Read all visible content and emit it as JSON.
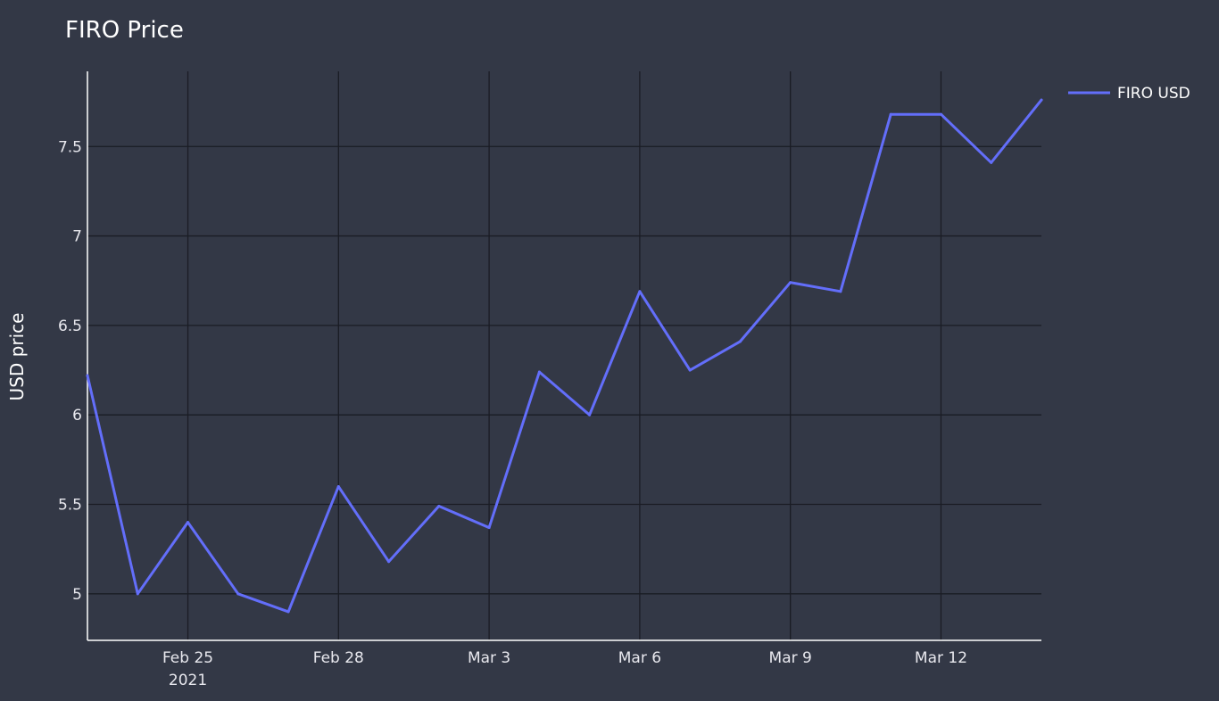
{
  "chart_data": {
    "type": "line",
    "title": "FIRO Price",
    "xlabel": "",
    "ylabel": "USD price",
    "x": [
      "2021-02-23",
      "2021-02-24",
      "2021-02-25",
      "2021-02-26",
      "2021-02-27",
      "2021-02-28",
      "2021-03-01",
      "2021-03-02",
      "2021-03-03",
      "2021-03-04",
      "2021-03-05",
      "2021-03-06",
      "2021-03-07",
      "2021-03-08",
      "2021-03-09",
      "2021-03-10",
      "2021-03-11",
      "2021-03-12",
      "2021-03-13",
      "2021-03-14"
    ],
    "series": [
      {
        "name": "FIRO USD",
        "color": "#636efa",
        "values": [
          6.22,
          5.0,
          5.4,
          5.0,
          4.9,
          5.6,
          5.18,
          5.49,
          5.37,
          6.24,
          6.0,
          6.69,
          6.25,
          6.41,
          6.74,
          6.69,
          7.68,
          7.68,
          7.41,
          7.76
        ]
      }
    ],
    "xlim": [
      "2021-02-23",
      "2021-03-14"
    ],
    "ylim": [
      4.74,
      7.92
    ],
    "x_ticks": [
      {
        "date": "2021-02-25",
        "label": "Feb 25",
        "sublabel": "2021"
      },
      {
        "date": "2021-02-28",
        "label": "Feb 28",
        "sublabel": ""
      },
      {
        "date": "2021-03-03",
        "label": "Mar 3",
        "sublabel": ""
      },
      {
        "date": "2021-03-06",
        "label": "Mar 6",
        "sublabel": ""
      },
      {
        "date": "2021-03-09",
        "label": "Mar 9",
        "sublabel": ""
      },
      {
        "date": "2021-03-12",
        "label": "Mar 12",
        "sublabel": ""
      }
    ],
    "y_ticks": [
      {
        "value": 5,
        "label": "5"
      },
      {
        "value": 5.5,
        "label": "5.5"
      },
      {
        "value": 6,
        "label": "6"
      },
      {
        "value": 6.5,
        "label": "6.5"
      },
      {
        "value": 7,
        "label": "7"
      },
      {
        "value": 7.5,
        "label": "7.5"
      }
    ],
    "grid": true,
    "legend_position": "top-right",
    "colors": {
      "background": "#333846",
      "gridline": "#1a1c24",
      "text": "#ffffff"
    }
  }
}
